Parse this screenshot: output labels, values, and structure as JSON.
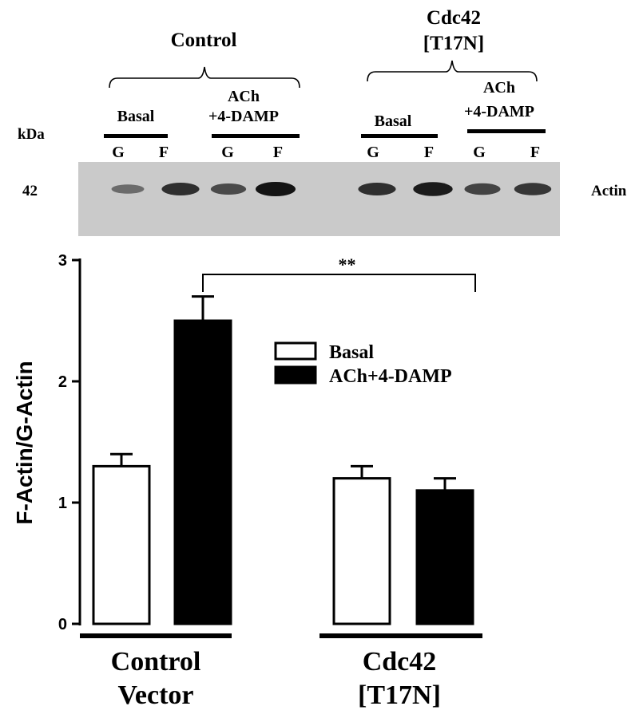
{
  "blot": {
    "kda_label": "kDa",
    "marker": "42",
    "protein": "Actin",
    "groups": [
      {
        "title_lines": [
          "Control"
        ],
        "conditions": [
          {
            "label_lines": [
              "Basal"
            ],
            "lanes": [
              "G",
              "F"
            ]
          },
          {
            "label_lines": [
              "ACh",
              "+4-DAMP"
            ],
            "lanes": [
              "G",
              "F"
            ]
          }
        ]
      },
      {
        "title_lines": [
          "Cdc42",
          "[T17N]"
        ],
        "conditions": [
          {
            "label_lines": [
              "Basal"
            ],
            "lanes": [
              "G",
              "F"
            ]
          },
          {
            "label_lines": [
              "ACh",
              "+4-DAMP"
            ],
            "lanes": [
              "G",
              "F"
            ]
          }
        ]
      }
    ],
    "band_intensity": [
      0.35,
      0.8,
      0.6,
      1.0,
      0.8,
      0.95,
      0.65,
      0.75
    ]
  },
  "chart_data": {
    "type": "bar",
    "ylabel": "F-Actin/G-Actin",
    "ylim": [
      0,
      3
    ],
    "yticks": [
      "0",
      "1",
      "2",
      "3"
    ],
    "categories": [
      [
        "Control",
        "Vector"
      ],
      [
        "Cdc42",
        "[T17N]"
      ]
    ],
    "series": [
      {
        "name": "Basal",
        "values": [
          1.3,
          1.2
        ],
        "errors": [
          0.1,
          0.1
        ],
        "fill": "#ffffff"
      },
      {
        "name": "ACh+4-DAMP",
        "values": [
          2.5,
          1.1
        ],
        "errors": [
          0.2,
          0.1
        ],
        "fill": "#000000"
      }
    ],
    "legend_position": "upper-right",
    "significance": {
      "label": "**",
      "from": [
        0,
        1
      ],
      "to": [
        1,
        1
      ]
    }
  }
}
